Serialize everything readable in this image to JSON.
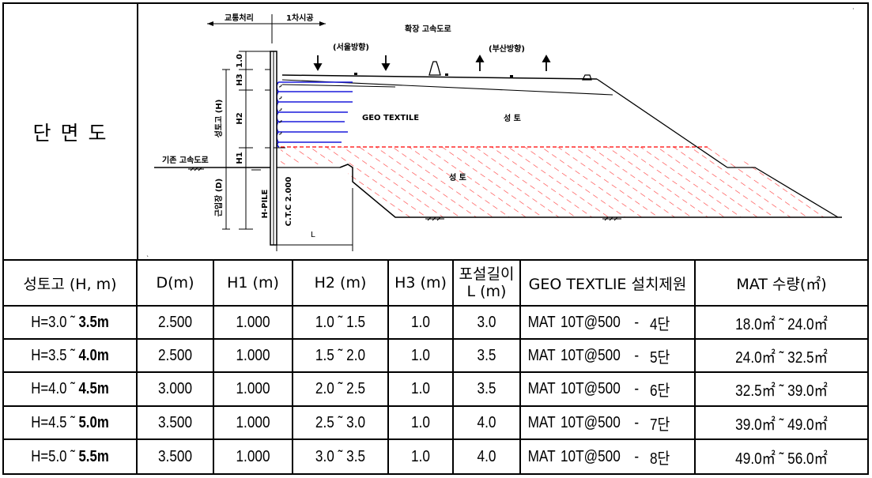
{
  "section_label": "단 면 도",
  "drawing": {
    "traffic_label": "교통처리",
    "first_stage_label": "1차시공",
    "expanded_highway": "확장 고속도로",
    "seoul_dir": "(서울방향)",
    "busan_dir": "(부산방향)",
    "geo_textile": "GEO TEXTILE",
    "fill_upper": "성 토",
    "fill_lower": "성 토",
    "existing_highway": "기존 고속도로",
    "embankment_height": "성토고 (H)",
    "embed_depth": "근입장 (D)",
    "h3": "H3",
    "h2": "H2",
    "h1": "H1",
    "dim_10": "1.0",
    "pile": "H-PILE",
    "ctc": "C.T.C 2.000",
    "length": "L"
  },
  "table": {
    "headers": [
      "성토고 (H, m)",
      "D(m)",
      "H1 (m)",
      "H2 (m)",
      "H3 (m)",
      "포설길이 L (m)",
      "GEO TEXTLIE 설치제원",
      "MAT 수량(㎡)"
    ],
    "header_l_line1": "포설길이",
    "header_l_line2": "L (m)",
    "rows": [
      {
        "h_prefix": "H=3.0 ˜ ",
        "h_bold": "3.5m",
        "d": "2.500",
        "h1": "1.000",
        "h2": "1.0 ˜ 1.5",
        "h3": "1.0",
        "l": "3.0",
        "mat_a": "MAT",
        "mat_b": "10T@500",
        "mat_c": "-",
        "mat_d": "4단",
        "qty": "18.0㎡ ˜ 24.0㎡"
      },
      {
        "h_prefix": "H=3.5 ˜ ",
        "h_bold": "4.0m",
        "d": "2.500",
        "h1": "1.000",
        "h2": "1.5 ˜ 2.0",
        "h3": "1.0",
        "l": "3.5",
        "mat_a": "MAT",
        "mat_b": "10T@500",
        "mat_c": "-",
        "mat_d": "5단",
        "qty": "24.0㎡ ˜ 32.5㎡"
      },
      {
        "h_prefix": "H=4.0 ˜ ",
        "h_bold": "4.5m",
        "d": "3.000",
        "h1": "1.000",
        "h2": "2.0 ˜ 2.5",
        "h3": "1.0",
        "l": "3.5",
        "mat_a": "MAT",
        "mat_b": "10T@500",
        "mat_c": "-",
        "mat_d": "6단",
        "qty": "32.5㎡ ˜ 39.0㎡"
      },
      {
        "h_prefix": "H=4.5 ˜ ",
        "h_bold": "5.0m",
        "d": "3.500",
        "h1": "1.000",
        "h2": "2.5 ˜ 3.0",
        "h3": "1.0",
        "l": "4.0",
        "mat_a": "MAT",
        "mat_b": "10T@500",
        "mat_c": "-",
        "mat_d": "7단",
        "qty": "39.0㎡ ˜ 49.0㎡"
      },
      {
        "h_prefix": "H=5.0 ˜ ",
        "h_bold": "5.5m",
        "d": "3.500",
        "h1": "1.000",
        "h2": "3.0 ˜ 3.5",
        "h3": "1.0",
        "l": "4.0",
        "mat_a": "MAT",
        "mat_b": "10T@500",
        "mat_c": "-",
        "mat_d": "8단",
        "qty": "49.0㎡ ˜ 56.0㎡"
      }
    ]
  }
}
